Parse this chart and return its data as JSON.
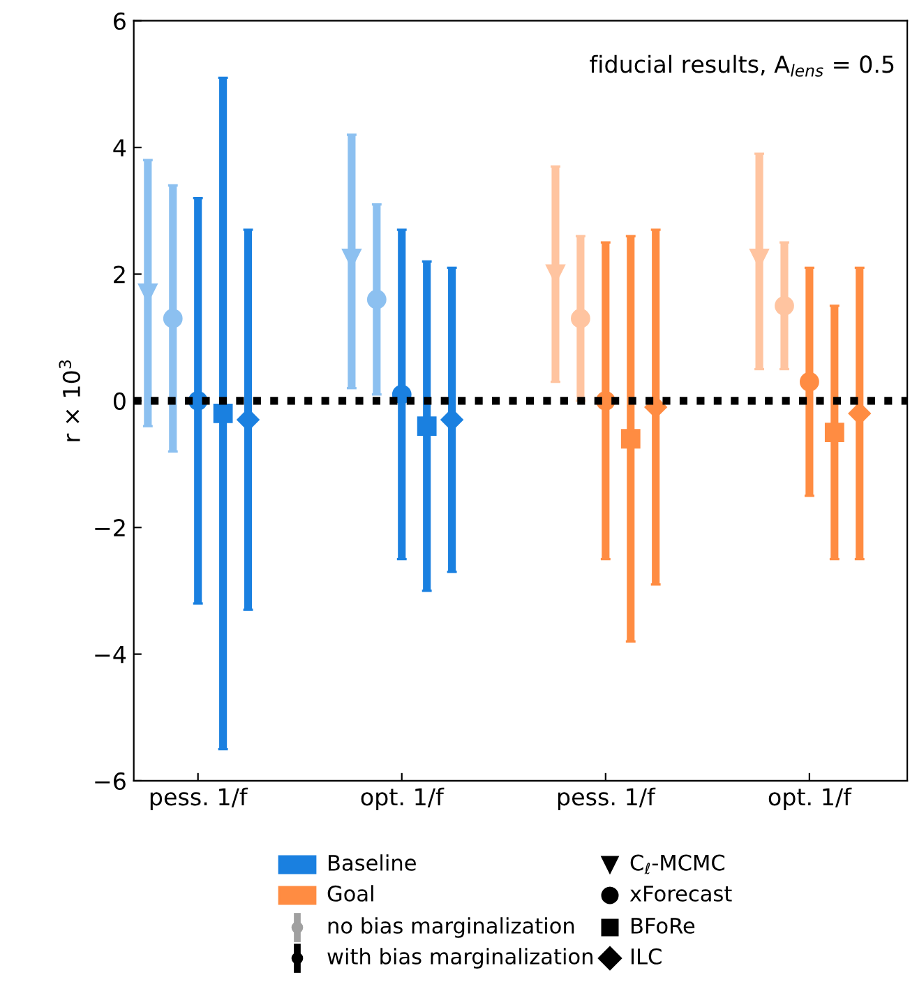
{
  "chart_data": {
    "type": "scatter",
    "categories": [
      "pess. 1/f",
      "opt. 1/f",
      "pess. 1/f",
      "opt. 1/f"
    ],
    "ylabel": "r × 10$^{3}$",
    "ylim": [
      -6,
      6
    ],
    "yticks": [
      {
        "value": -6,
        "label": "−6"
      },
      {
        "value": -4,
        "label": "−4"
      },
      {
        "value": -2,
        "label": "−2"
      },
      0,
      2,
      4,
      6
    ],
    "annotations": [
      "fiducial results, A$_{lens}$ = 0.5",
      "Baseline",
      "Goal",
      "no bias marginalization",
      "with bias marginalization",
      "C$_{ℓ}$-MCMC",
      "xForecast",
      "BFoRe",
      "ILC"
    ],
    "ref_lines": [
      {
        "axis": "y",
        "value": 0,
        "color": "#000000",
        "line_style": "dotted"
      }
    ],
    "grid": false,
    "series": [
      {
        "marker": "triangle",
        "colors": [
          "#8cc0f0",
          "#8cc0f0",
          "#ffc4a0",
          "#ffc4a0"
        ],
        "values": [
          1.7,
          2.25,
          2.0,
          2.25
        ],
        "errors": [
          [
            -0.4,
            3.8
          ],
          [
            0.2,
            4.2
          ],
          [
            0.3,
            3.7
          ],
          [
            0.5,
            3.9
          ]
        ]
      },
      {
        "marker": "circle",
        "colors": [
          "#8cc0f0",
          "#8cc0f0",
          "#ffc4a0",
          "#ffc4a0"
        ],
        "values": [
          1.3,
          1.6,
          1.3,
          1.5
        ],
        "errors": [
          [
            -0.8,
            3.4
          ],
          [
            0.1,
            3.1
          ],
          [
            0.0,
            2.6
          ],
          [
            0.5,
            2.5
          ]
        ]
      },
      {
        "marker": "circle",
        "colors": [
          "#1a80e0",
          "#1a80e0",
          "#ff8c42",
          "#ff8c42"
        ],
        "values": [
          0.0,
          0.1,
          0.0,
          0.3
        ],
        "errors": [
          [
            -3.2,
            3.2
          ],
          [
            -2.5,
            2.7
          ],
          [
            -2.5,
            2.5
          ],
          [
            -1.5,
            2.1
          ]
        ]
      },
      {
        "marker": "square",
        "colors": [
          "#1a80e0",
          "#1a80e0",
          "#ff8c42",
          "#ff8c42"
        ],
        "values": [
          -0.2,
          -0.4,
          -0.6,
          -0.5
        ],
        "errors": [
          [
            -5.5,
            5.1
          ],
          [
            -3.0,
            2.2
          ],
          [
            -3.8,
            2.6
          ],
          [
            -2.5,
            1.5
          ]
        ]
      },
      {
        "marker": "diamond",
        "colors": [
          "#1a80e0",
          "#1a80e0",
          "#ff8c42",
          "#ff8c42"
        ],
        "values": [
          -0.3,
          -0.3,
          -0.1,
          -0.2
        ],
        "errors": [
          [
            -3.3,
            2.7
          ],
          [
            -2.7,
            2.1
          ],
          [
            -2.9,
            2.7
          ],
          [
            -2.5,
            2.1
          ]
        ]
      }
    ]
  }
}
